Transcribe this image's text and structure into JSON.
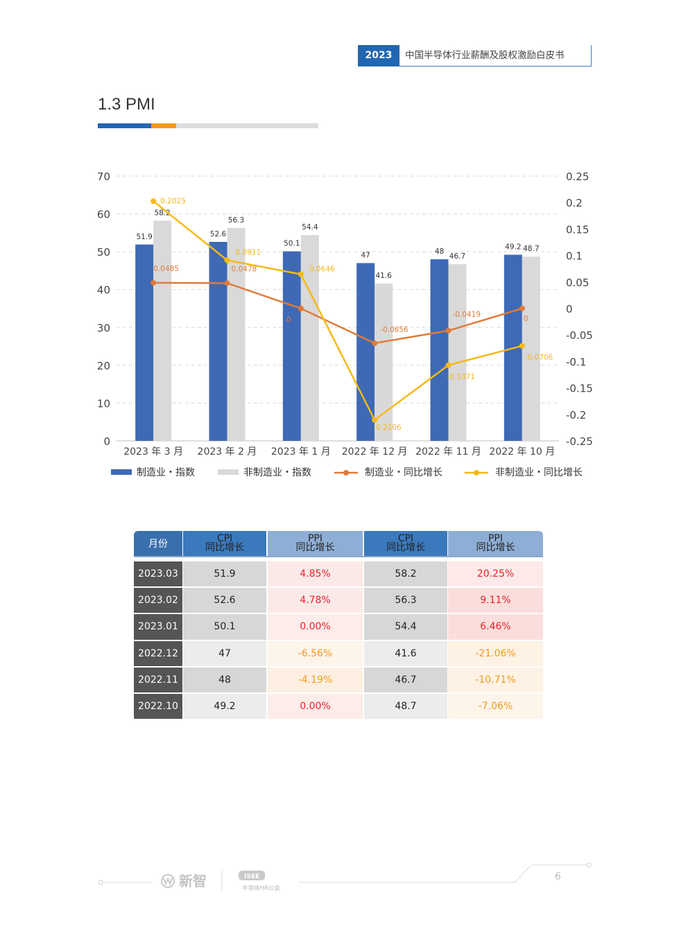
{
  "header": {
    "year": "2023",
    "title": "中国半导体行业薪酬及股权激励白皮书"
  },
  "section": {
    "title": "1.3 PMI"
  },
  "chart_data": {
    "type": "bar",
    "categories": [
      "2023 年 3 月",
      "2023 年 2 月",
      "2023 年 1 月",
      "2022 年 12 月",
      "2022 年 11 月",
      "2022 年 10 月"
    ],
    "series": [
      {
        "name": "制造业・指数",
        "type": "bar",
        "axis": "left",
        "color": "#3f69b5",
        "values": [
          51.9,
          52.6,
          50.1,
          47,
          48,
          49.2
        ],
        "labels": [
          "51.9",
          "52.6",
          "50.1",
          "47",
          "48",
          "49.2"
        ]
      },
      {
        "name": "非制造业・指数",
        "type": "bar",
        "axis": "left",
        "color": "#d9d9d9",
        "values": [
          58.2,
          56.3,
          54.4,
          41.6,
          46.7,
          48.7
        ],
        "labels": [
          "58.2",
          "56.3",
          "54.4",
          "41.6",
          "46.7",
          "48.7"
        ]
      },
      {
        "name": "制造业・同比增长",
        "type": "line",
        "axis": "right",
        "color": "#e07b39",
        "values": [
          0.0485,
          0.0478,
          0,
          -0.0656,
          -0.0419,
          0
        ],
        "labels": [
          "0.0485",
          "0.0478",
          "0",
          "-0.0656",
          "-0.0419",
          "0"
        ]
      },
      {
        "name": "非制造业・同比增长",
        "type": "line",
        "axis": "right",
        "color": "#f4b918",
        "values": [
          0.2025,
          0.0911,
          0.0646,
          -0.2106,
          -0.1071,
          -0.0706
        ],
        "labels": [
          "0.2025",
          "0.0911",
          "0.0646",
          "-0.2106",
          "-0.1071",
          "-0.0706"
        ]
      }
    ],
    "y_left": {
      "min": 0,
      "max": 70,
      "ticks": [
        "70",
        "60",
        "50",
        "40",
        "30",
        "20",
        "10",
        "0"
      ]
    },
    "y_right": {
      "min": -0.25,
      "max": 0.25,
      "ticks": [
        "0.25",
        "0.2",
        "0.15",
        "0.1",
        "0.05",
        "0",
        "-0.05",
        "-0.1",
        "-0.15",
        "-0.2",
        "-0.25"
      ]
    },
    "grid": true,
    "legend": "bottom"
  },
  "table": {
    "headers": {
      "month": "月份",
      "c1": [
        "CPI",
        "同比增长"
      ],
      "c2": [
        "PPI",
        "同比增长"
      ],
      "c3": [
        "CPI",
        "同比增长"
      ],
      "c4": [
        "PPI",
        "同比增长"
      ]
    },
    "rows": [
      {
        "month": "2023.03",
        "v1": "51.9",
        "v2": "4.85%",
        "v3": "58.2",
        "v4": "20.25%"
      },
      {
        "month": "2023.02",
        "v1": "52.6",
        "v2": "4.78%",
        "v3": "56.3",
        "v4": "9.11%"
      },
      {
        "month": "2023.01",
        "v1": "50.1",
        "v2": "0.00%",
        "v3": "54.4",
        "v4": "6.46%"
      },
      {
        "month": "2022.12",
        "v1": "47",
        "v2": "-6.56%",
        "v3": "41.6",
        "v4": "-21.06%"
      },
      {
        "month": "2022.11",
        "v1": "48",
        "v2": "-4.19%",
        "v3": "46.7",
        "v4": "-10.71%"
      },
      {
        "month": "2022.10",
        "v1": "49.2",
        "v2": "0.00%",
        "v3": "48.7",
        "v4": "-7.06%"
      }
    ],
    "colors": {
      "header_dark": "#3b79bd",
      "header_light": "#8eaed5",
      "month_header": "#3a6fad",
      "month_cell": "#555555",
      "positive_text": "#e8212e",
      "negative_text": "#f09a1c"
    }
  },
  "footer": {
    "logo1_icon": "xinzhi-logo",
    "logo1_text": "新智",
    "logo2_badge": "ISEE",
    "logo2_text": "半导体HR公会",
    "page_number": "6"
  }
}
